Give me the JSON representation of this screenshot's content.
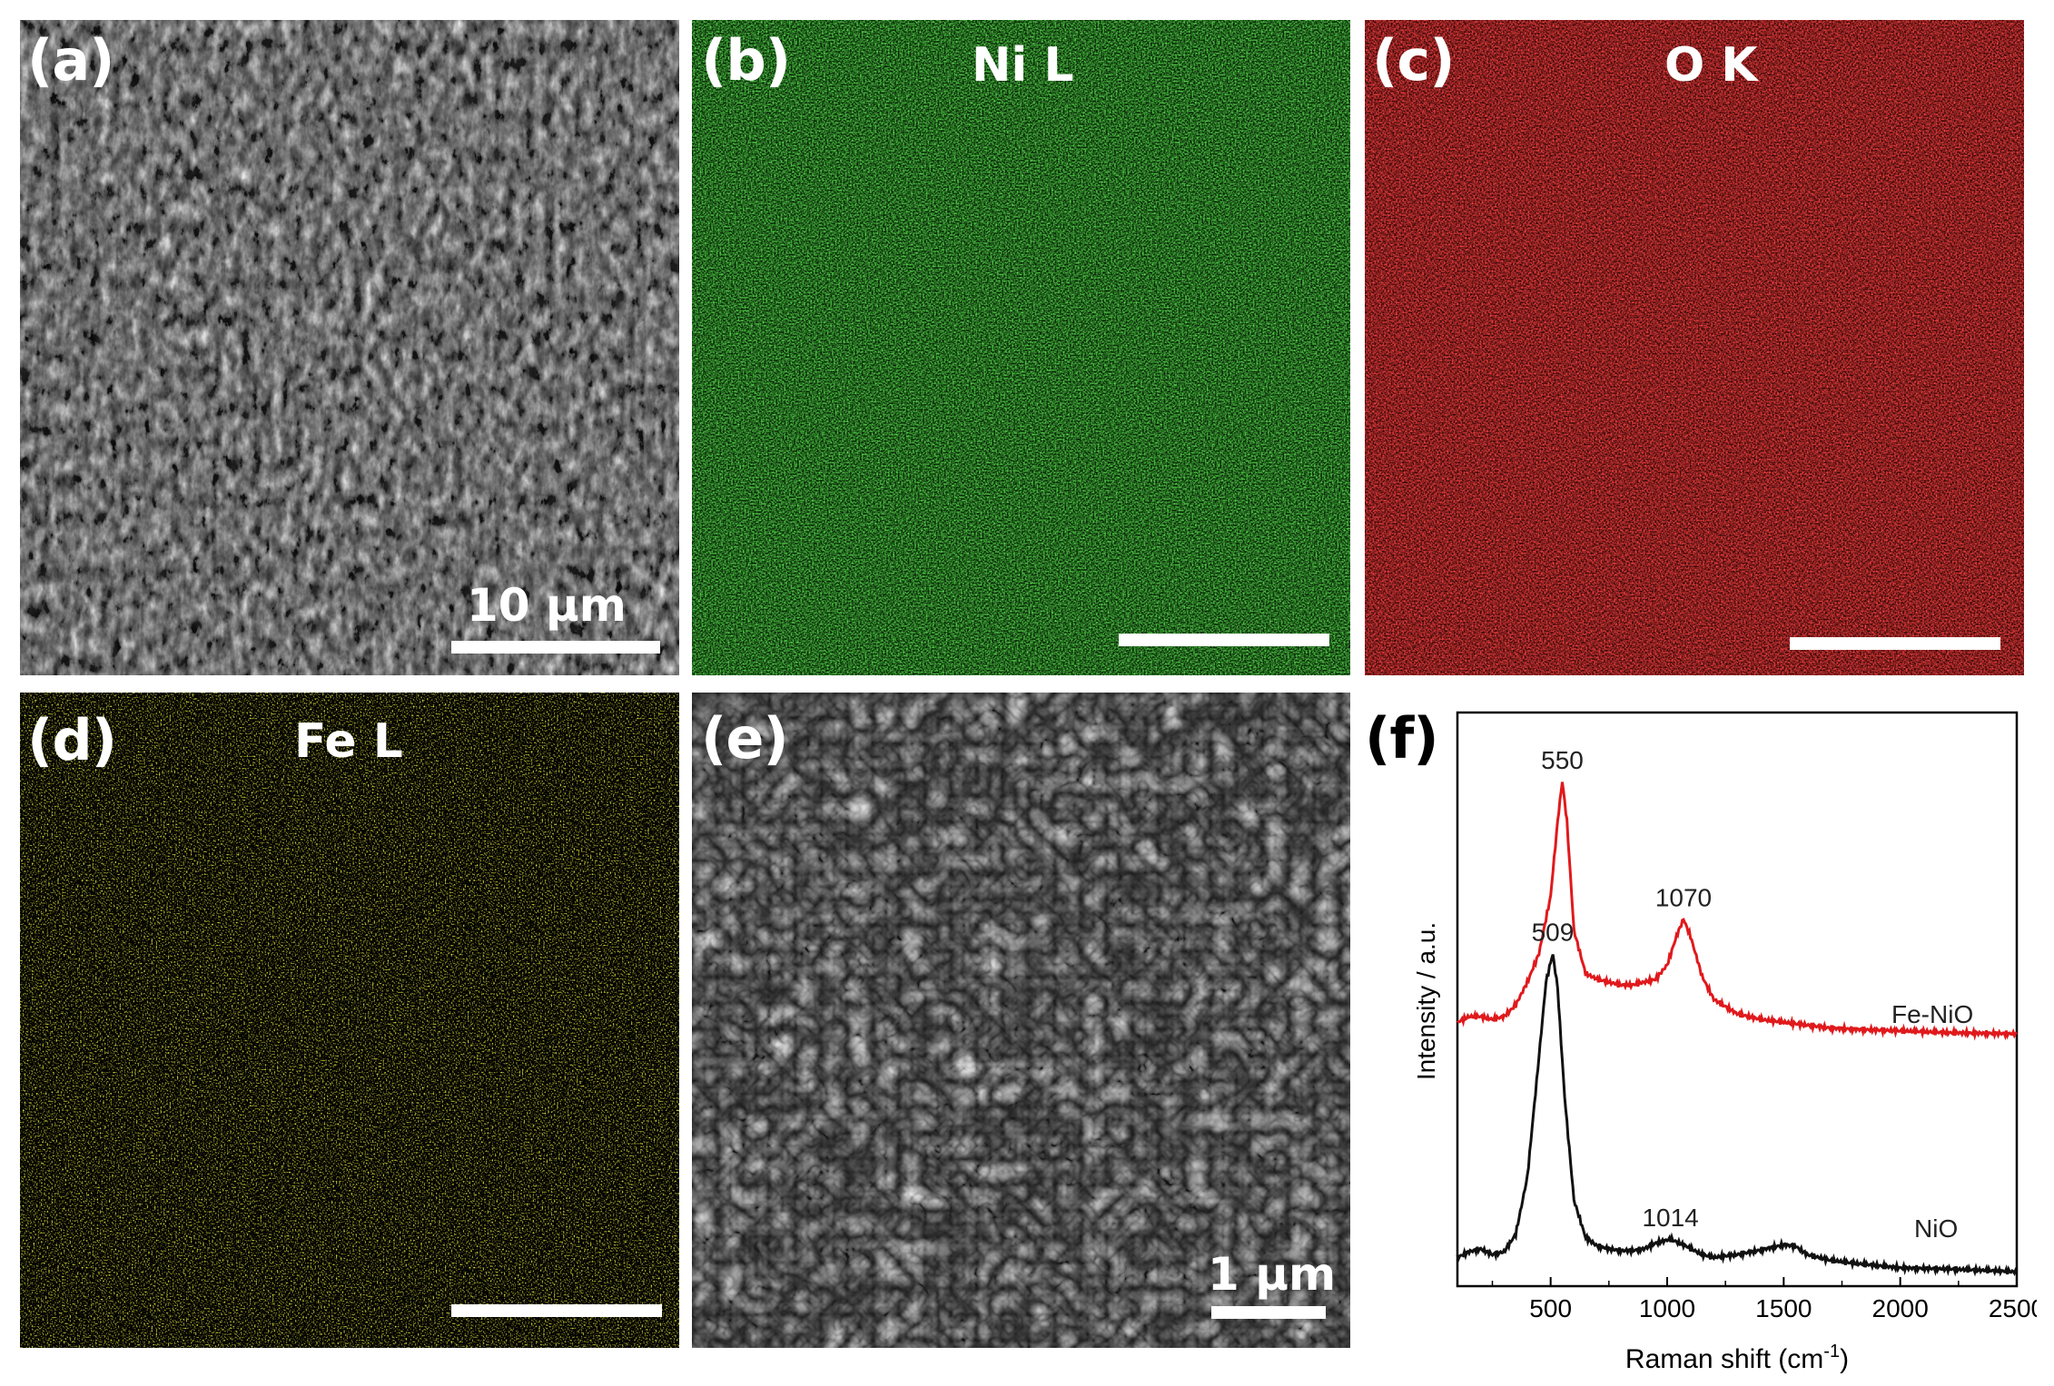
{
  "figure": {
    "panels": [
      {
        "id": "a",
        "label": "(a)",
        "kind": "SEM",
        "scale_text": "10 μm"
      },
      {
        "id": "b",
        "label": "(b)",
        "kind": "EDS map",
        "element": "Ni L",
        "color": "#22e01a"
      },
      {
        "id": "c",
        "label": "(c)",
        "kind": "EDS map",
        "element": "O K",
        "color": "#ff1010"
      },
      {
        "id": "d",
        "label": "(d)",
        "kind": "EDS map",
        "element": "Fe L",
        "color": "#ecec10"
      },
      {
        "id": "e",
        "label": "(e)",
        "kind": "SEM",
        "scale_text": "1 μm"
      },
      {
        "id": "f",
        "label": "(f)",
        "kind": "Raman spectrum"
      }
    ]
  },
  "chart_data": {
    "type": "line",
    "xlabel": "Raman shift (cm",
    "xlabel_sup": "-1",
    "xlabel_end": ")",
    "ylabel": "Intensity / a.u.",
    "xlim": [
      100,
      2500
    ],
    "x_ticks": [
      "500",
      "1000",
      "1500",
      "2000",
      "2500"
    ],
    "y_ticks_shown": false,
    "series": [
      {
        "name": "Fe-NiO",
        "color": "#e0191c",
        "points": [
          [
            100,
            0.46
          ],
          [
            150,
            0.47
          ],
          [
            200,
            0.47
          ],
          [
            250,
            0.465
          ],
          [
            300,
            0.47
          ],
          [
            350,
            0.49
          ],
          [
            400,
            0.53
          ],
          [
            450,
            0.58
          ],
          [
            500,
            0.68
          ],
          [
            530,
            0.81
          ],
          [
            550,
            0.88
          ],
          [
            570,
            0.81
          ],
          [
            600,
            0.62
          ],
          [
            650,
            0.545
          ],
          [
            700,
            0.535
          ],
          [
            750,
            0.53
          ],
          [
            800,
            0.525
          ],
          [
            850,
            0.525
          ],
          [
            900,
            0.53
          ],
          [
            950,
            0.535
          ],
          [
            1000,
            0.56
          ],
          [
            1040,
            0.61
          ],
          [
            1070,
            0.64
          ],
          [
            1100,
            0.61
          ],
          [
            1150,
            0.54
          ],
          [
            1200,
            0.5
          ],
          [
            1300,
            0.475
          ],
          [
            1400,
            0.465
          ],
          [
            1500,
            0.46
          ],
          [
            1600,
            0.455
          ],
          [
            1700,
            0.45
          ],
          [
            1800,
            0.448
          ],
          [
            2000,
            0.445
          ],
          [
            2200,
            0.442
          ],
          [
            2500,
            0.44
          ]
        ]
      },
      {
        "name": "NiO",
        "color": "#111111",
        "points": [
          [
            100,
            0.05
          ],
          [
            150,
            0.06
          ],
          [
            200,
            0.065
          ],
          [
            250,
            0.055
          ],
          [
            300,
            0.06
          ],
          [
            350,
            0.09
          ],
          [
            400,
            0.19
          ],
          [
            450,
            0.4
          ],
          [
            480,
            0.53
          ],
          [
            509,
            0.58
          ],
          [
            530,
            0.52
          ],
          [
            560,
            0.33
          ],
          [
            600,
            0.15
          ],
          [
            650,
            0.085
          ],
          [
            700,
            0.07
          ],
          [
            750,
            0.065
          ],
          [
            800,
            0.062
          ],
          [
            850,
            0.062
          ],
          [
            900,
            0.065
          ],
          [
            950,
            0.075
          ],
          [
            1014,
            0.082
          ],
          [
            1080,
            0.07
          ],
          [
            1150,
            0.055
          ],
          [
            1200,
            0.05
          ],
          [
            1300,
            0.055
          ],
          [
            1400,
            0.063
          ],
          [
            1500,
            0.072
          ],
          [
            1550,
            0.07
          ],
          [
            1600,
            0.055
          ],
          [
            1700,
            0.045
          ],
          [
            1800,
            0.04
          ],
          [
            1900,
            0.036
          ],
          [
            2000,
            0.032
          ],
          [
            2200,
            0.03
          ],
          [
            2400,
            0.027
          ],
          [
            2500,
            0.025
          ]
        ]
      }
    ],
    "peak_labels": [
      {
        "x": 550,
        "text": "550",
        "series": "Fe-NiO"
      },
      {
        "x": 1070,
        "text": "1070",
        "series": "Fe-NiO"
      },
      {
        "x": 509,
        "text": "509",
        "series": "NiO"
      },
      {
        "x": 1014,
        "text": "1014",
        "series": "NiO"
      }
    ],
    "series_labels": [
      "Fe-NiO",
      "NiO"
    ],
    "grid": false,
    "legend": "inline series labels on right"
  }
}
